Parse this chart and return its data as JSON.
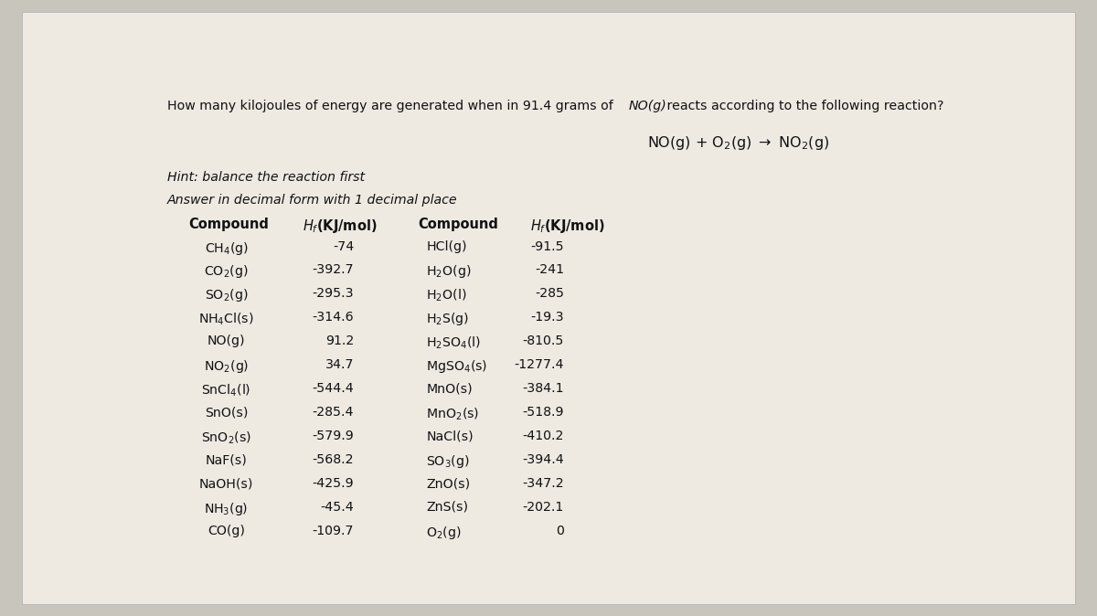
{
  "question_part1": "How many kilojoules of energy are generated when in 91.4 grams of ",
  "question_NO": "NO(g)",
  "question_part2": " reacts according to the following reaction?",
  "reaction": "NO(g) + O$_2$(g) $\\rightarrow$ NO$_2$(g)",
  "hint": "Hint: balance the reaction first",
  "answer_note": "Answer in decimal form with 1 decimal place",
  "left_compounds": [
    "CH$_4$(g)",
    "CO$_2$(g)",
    "SO$_2$(g)",
    "NH$_4$Cl(s)",
    "NO(g)",
    "NO$_2$(g)",
    "SnCl$_4$(l)",
    "SnO(s)",
    "SnO$_2$(s)",
    "NaF(s)",
    "NaOH(s)",
    "NH$_3$(g)",
    "CO(g)"
  ],
  "left_values": [
    "-74",
    "-392.7",
    "-295.3",
    "-314.6",
    "91.2",
    "34.7",
    "-544.4",
    "-285.4",
    "-579.9",
    "-568.2",
    "-425.9",
    "-45.4",
    "-109.7"
  ],
  "right_compounds": [
    "HCl(g)",
    "H$_2$O(g)",
    "H$_2$O(l)",
    "H$_2$S(g)",
    "H$_2$SO$_4$(l)",
    "MgSO$_4$(s)",
    "MnO(s)",
    "MnO$_2$(s)",
    "NaCl(s)",
    "SO$_3$(g)",
    "ZnO(s)",
    "ZnS(s)",
    "O$_2$(g)"
  ],
  "right_values": [
    "-91.5",
    "-241",
    "-285",
    "-19.3",
    "-810.5",
    "-1277.4",
    "-384.1",
    "-518.9",
    "-410.2",
    "-394.4",
    "-347.2",
    "-202.1",
    "0"
  ],
  "bg_color": "#c8c5bc",
  "page_bg": "#eeeae2",
  "text_color": "#111111"
}
